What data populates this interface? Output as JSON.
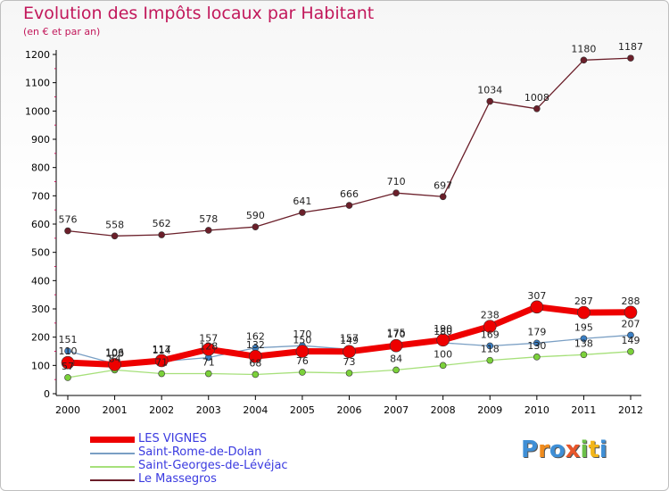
{
  "header": {
    "title": "Evolution des Impôts locaux par Habitant",
    "subtitle": "(en € et par an)"
  },
  "logo": {
    "letters": [
      "P",
      "r",
      "o",
      "x",
      "i",
      "t",
      "i"
    ],
    "colors": [
      "#3f8fd6",
      "#f08c1e",
      "#3f8fd6",
      "#e8562a",
      "#6cc04a",
      "#f3b619",
      "#3f8fd6"
    ]
  },
  "chart_data": {
    "type": "line",
    "x": [
      "2000",
      "2001",
      "2002",
      "2003",
      "2004",
      "2005",
      "2006",
      "2007",
      "2008",
      "2009",
      "2010",
      "2011",
      "2012"
    ],
    "ylim": [
      0,
      1200
    ],
    "yticks": [
      "0",
      "100",
      "200",
      "300",
      "400",
      "500",
      "600",
      "700",
      "800",
      "900",
      "1000",
      "1100",
      "1200"
    ],
    "grid": false,
    "legend": "bottom-left",
    "series": [
      {
        "name": "Le Massegros",
        "color": "#6b1f2a",
        "marker": "#6b1f2a",
        "width": 1.3,
        "radius": 3.5,
        "values": [
          576,
          558,
          562,
          578,
          590,
          641,
          666,
          710,
          697,
          1034,
          1008,
          1180,
          1187
        ],
        "labels": [
          "576",
          "558",
          "562",
          "578",
          "590",
          "641",
          "666",
          "710",
          "697",
          "1034",
          "1008",
          "1180",
          "1187"
        ]
      },
      {
        "name": "Saint-Georges-de-Lévéjac",
        "color": "#a6e07a",
        "marker": "#7bd13a",
        "width": 1.3,
        "radius": 3.5,
        "values": [
          57,
          84,
          71,
          71,
          68,
          76,
          73,
          84,
          100,
          118,
          130,
          138,
          149
        ],
        "labels": [
          "57",
          "84",
          "71",
          "71",
          "68",
          "76",
          "73",
          "84",
          "100",
          "118",
          "130",
          "138",
          "149"
        ]
      },
      {
        "name": "Saint-Rome-de-Dolan",
        "color": "#7a9fc4",
        "marker": "#3b7fc4",
        "width": 1.3,
        "radius": 3.5,
        "values": [
          151,
          106,
          114,
          128,
          162,
          170,
          157,
          175,
          180,
          169,
          179,
          195,
          207
        ],
        "labels": [
          "151",
          "106",
          "114",
          "128",
          "162",
          "170",
          "157",
          "175",
          "180",
          "169",
          "179",
          "195",
          "207"
        ]
      },
      {
        "name": "LES VIGNES",
        "color": "#ee0000",
        "marker": "#ee0000",
        "width": 7,
        "radius": 7,
        "values": [
          110,
          103,
          117,
          157,
          132,
          150,
          149,
          170,
          190,
          238,
          307,
          287,
          288
        ],
        "labels": [
          "110",
          "103",
          "117",
          "157",
          "132",
          "150",
          "149",
          "170",
          "190",
          "238",
          "307",
          "287",
          "288"
        ]
      }
    ]
  },
  "legend": {
    "items": [
      {
        "label": "LES VIGNES",
        "color": "#ee0000",
        "thickness": 7
      },
      {
        "label": "Saint-Rome-de-Dolan",
        "color": "#7a9fc4",
        "thickness": 2
      },
      {
        "label": "Saint-Georges-de-Lévéjac",
        "color": "#a6e07a",
        "thickness": 2
      },
      {
        "label": "Le Massegros",
        "color": "#6b1f2a",
        "thickness": 2
      }
    ]
  }
}
